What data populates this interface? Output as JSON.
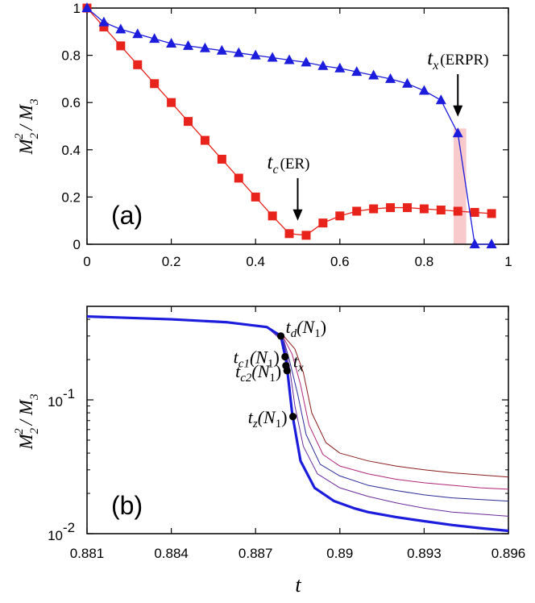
{
  "chart_data": [
    {
      "id": "panel-a",
      "type": "line",
      "panel_label": "(a)",
      "ylabel": {
        "base": "M",
        "sub": "2",
        "sup": "2",
        "rest": "/ M",
        "rest_sub": "3"
      },
      "xlim": [
        0,
        1
      ],
      "ylim": [
        0,
        1
      ],
      "xticks": [
        0,
        0.2,
        0.4,
        0.6,
        0.8,
        1
      ],
      "xtick_labels": [
        "0",
        "0.2",
        "0.4",
        "0.6",
        "0.8",
        "1"
      ],
      "yticks": [
        0,
        0.2,
        0.4,
        0.6,
        0.8,
        1
      ],
      "ytick_labels": [
        "0",
        "0.2",
        "0.4",
        "0.6",
        "0.8",
        "1"
      ],
      "series": [
        {
          "name": "ER",
          "color": "#e8231c",
          "marker": "square",
          "x": [
            0,
            0.04,
            0.08,
            0.12,
            0.16,
            0.2,
            0.24,
            0.28,
            0.32,
            0.36,
            0.4,
            0.44,
            0.48,
            0.52,
            0.56,
            0.6,
            0.64,
            0.68,
            0.72,
            0.76,
            0.8,
            0.84,
            0.88,
            0.92,
            0.96
          ],
          "y": [
            1.0,
            0.92,
            0.84,
            0.76,
            0.68,
            0.6,
            0.52,
            0.44,
            0.36,
            0.28,
            0.2,
            0.12,
            0.045,
            0.038,
            0.09,
            0.12,
            0.14,
            0.15,
            0.155,
            0.155,
            0.15,
            0.145,
            0.14,
            0.135,
            0.13
          ]
        },
        {
          "name": "ERPR",
          "color": "#1c1cdc",
          "marker": "triangle",
          "x": [
            0,
            0.04,
            0.08,
            0.12,
            0.16,
            0.2,
            0.24,
            0.28,
            0.32,
            0.36,
            0.4,
            0.44,
            0.48,
            0.52,
            0.56,
            0.6,
            0.64,
            0.68,
            0.72,
            0.76,
            0.8,
            0.84,
            0.88,
            0.92,
            0.96
          ],
          "y": [
            1.0,
            0.94,
            0.91,
            0.89,
            0.87,
            0.85,
            0.84,
            0.83,
            0.82,
            0.81,
            0.8,
            0.79,
            0.78,
            0.77,
            0.755,
            0.745,
            0.73,
            0.715,
            0.7,
            0.68,
            0.65,
            0.61,
            0.47,
            0.0,
            0.0
          ]
        }
      ],
      "highlight_band": {
        "x": [
          0.87,
          0.9
        ],
        "y": [
          0,
          0.49
        ],
        "color": "#f4a6aa"
      },
      "annotations": [
        {
          "id": "tc",
          "main": "t",
          "sub": "c",
          "label": "(ER)",
          "x": 0.5,
          "y_tip": 0.1,
          "y_tail": 0.28
        },
        {
          "id": "tx",
          "main": "t",
          "sub": "x",
          "label": "(ERPR)",
          "x": 0.88,
          "y_tip": 0.54,
          "y_tail": 0.72
        }
      ]
    },
    {
      "id": "panel-b",
      "type": "line",
      "panel_label": "(b)",
      "xlabel": "t",
      "ylabel": {
        "base": "M",
        "sub": "2",
        "sup": "2",
        "rest": "/ M",
        "rest_sub": "3"
      },
      "yscale": "log",
      "xlim": [
        0.881,
        0.896
      ],
      "ylim": [
        0.01,
        0.5
      ],
      "xticks": [
        0.881,
        0.884,
        0.887,
        0.89,
        0.893,
        0.896
      ],
      "xtick_labels": [
        "0.881",
        "0.884",
        "0.887",
        "0.89",
        "0.893",
        "0.896"
      ],
      "yticks": [
        0.1,
        0.01
      ],
      "ytick_labels": [
        {
          "base": "10",
          "sup": "-1"
        },
        {
          "base": "10",
          "sup": "-2"
        }
      ],
      "series": [
        {
          "name": "curve-1",
          "color": "#8b1a1a",
          "width": 1,
          "x": [
            0.881,
            0.884,
            0.886,
            0.8874,
            0.888,
            0.8884,
            0.8887,
            0.889,
            0.8895,
            0.89,
            0.891,
            0.892,
            0.893,
            0.894,
            0.895,
            0.896
          ],
          "y": [
            0.42,
            0.4,
            0.38,
            0.35,
            0.3,
            0.24,
            0.16,
            0.08,
            0.048,
            0.04,
            0.035,
            0.032,
            0.03,
            0.0285,
            0.0275,
            0.0265
          ]
        },
        {
          "name": "curve-2",
          "color": "#b0267a",
          "width": 1,
          "x": [
            0.881,
            0.884,
            0.886,
            0.8874,
            0.888,
            0.8883,
            0.8886,
            0.8889,
            0.8894,
            0.89,
            0.891,
            0.892,
            0.893,
            0.894,
            0.895,
            0.896
          ],
          "y": [
            0.42,
            0.4,
            0.38,
            0.35,
            0.29,
            0.22,
            0.13,
            0.065,
            0.039,
            0.032,
            0.028,
            0.0255,
            0.024,
            0.023,
            0.022,
            0.0215
          ]
        },
        {
          "name": "curve-3",
          "color": "#2a2a9a",
          "width": 1,
          "x": [
            0.881,
            0.884,
            0.886,
            0.8874,
            0.888,
            0.8882,
            0.8885,
            0.8888,
            0.8893,
            0.89,
            0.891,
            0.892,
            0.893,
            0.894,
            0.895,
            0.896
          ],
          "y": [
            0.42,
            0.4,
            0.38,
            0.35,
            0.28,
            0.2,
            0.11,
            0.055,
            0.033,
            0.027,
            0.023,
            0.021,
            0.0195,
            0.0185,
            0.018,
            0.0175
          ]
        },
        {
          "name": "curve-4",
          "color": "#6a2a9a",
          "width": 1,
          "x": [
            0.881,
            0.884,
            0.886,
            0.8874,
            0.888,
            0.8882,
            0.8884,
            0.8887,
            0.8892,
            0.89,
            0.891,
            0.892,
            0.893,
            0.894,
            0.895,
            0.896
          ],
          "y": [
            0.42,
            0.4,
            0.38,
            0.35,
            0.27,
            0.18,
            0.09,
            0.045,
            0.028,
            0.022,
            0.019,
            0.017,
            0.0155,
            0.0145,
            0.014,
            0.0135
          ]
        },
        {
          "name": "curve-5",
          "color": "#1c1cdc",
          "width": 3.2,
          "x": [
            0.881,
            0.884,
            0.886,
            0.8874,
            0.8879,
            0.8881,
            0.8883,
            0.8886,
            0.8891,
            0.8898,
            0.8905,
            0.891,
            0.892,
            0.893,
            0.894,
            0.895,
            0.896
          ],
          "y": [
            0.42,
            0.4,
            0.38,
            0.35,
            0.3,
            0.19,
            0.08,
            0.035,
            0.022,
            0.0175,
            0.0155,
            0.0145,
            0.0133,
            0.0124,
            0.0116,
            0.011,
            0.0105
          ]
        }
      ],
      "points": [
        {
          "id": "td",
          "main": "t",
          "sub": "d",
          "arg": "(N",
          "arg_sub": "1",
          "close": ")",
          "x": 0.8879,
          "y": 0.3
        },
        {
          "id": "tc1",
          "main": "t",
          "sub": "c1",
          "arg": "(N",
          "arg_sub": "1",
          "close": ")",
          "x": 0.88805,
          "y": 0.21
        },
        {
          "id": "tx",
          "main": "t",
          "sub": "x",
          "arg": "",
          "arg_sub": "",
          "close": "",
          "x": 0.88808,
          "y": 0.18
        },
        {
          "id": "tc2",
          "main": "t",
          "sub": "c2",
          "arg": "(N",
          "arg_sub": "1",
          "close": ")",
          "x": 0.88812,
          "y": 0.165
        },
        {
          "id": "tz",
          "main": "t",
          "sub": "z",
          "arg": "(N",
          "arg_sub": "1",
          "close": ")",
          "x": 0.88833,
          "y": 0.075
        }
      ]
    }
  ]
}
